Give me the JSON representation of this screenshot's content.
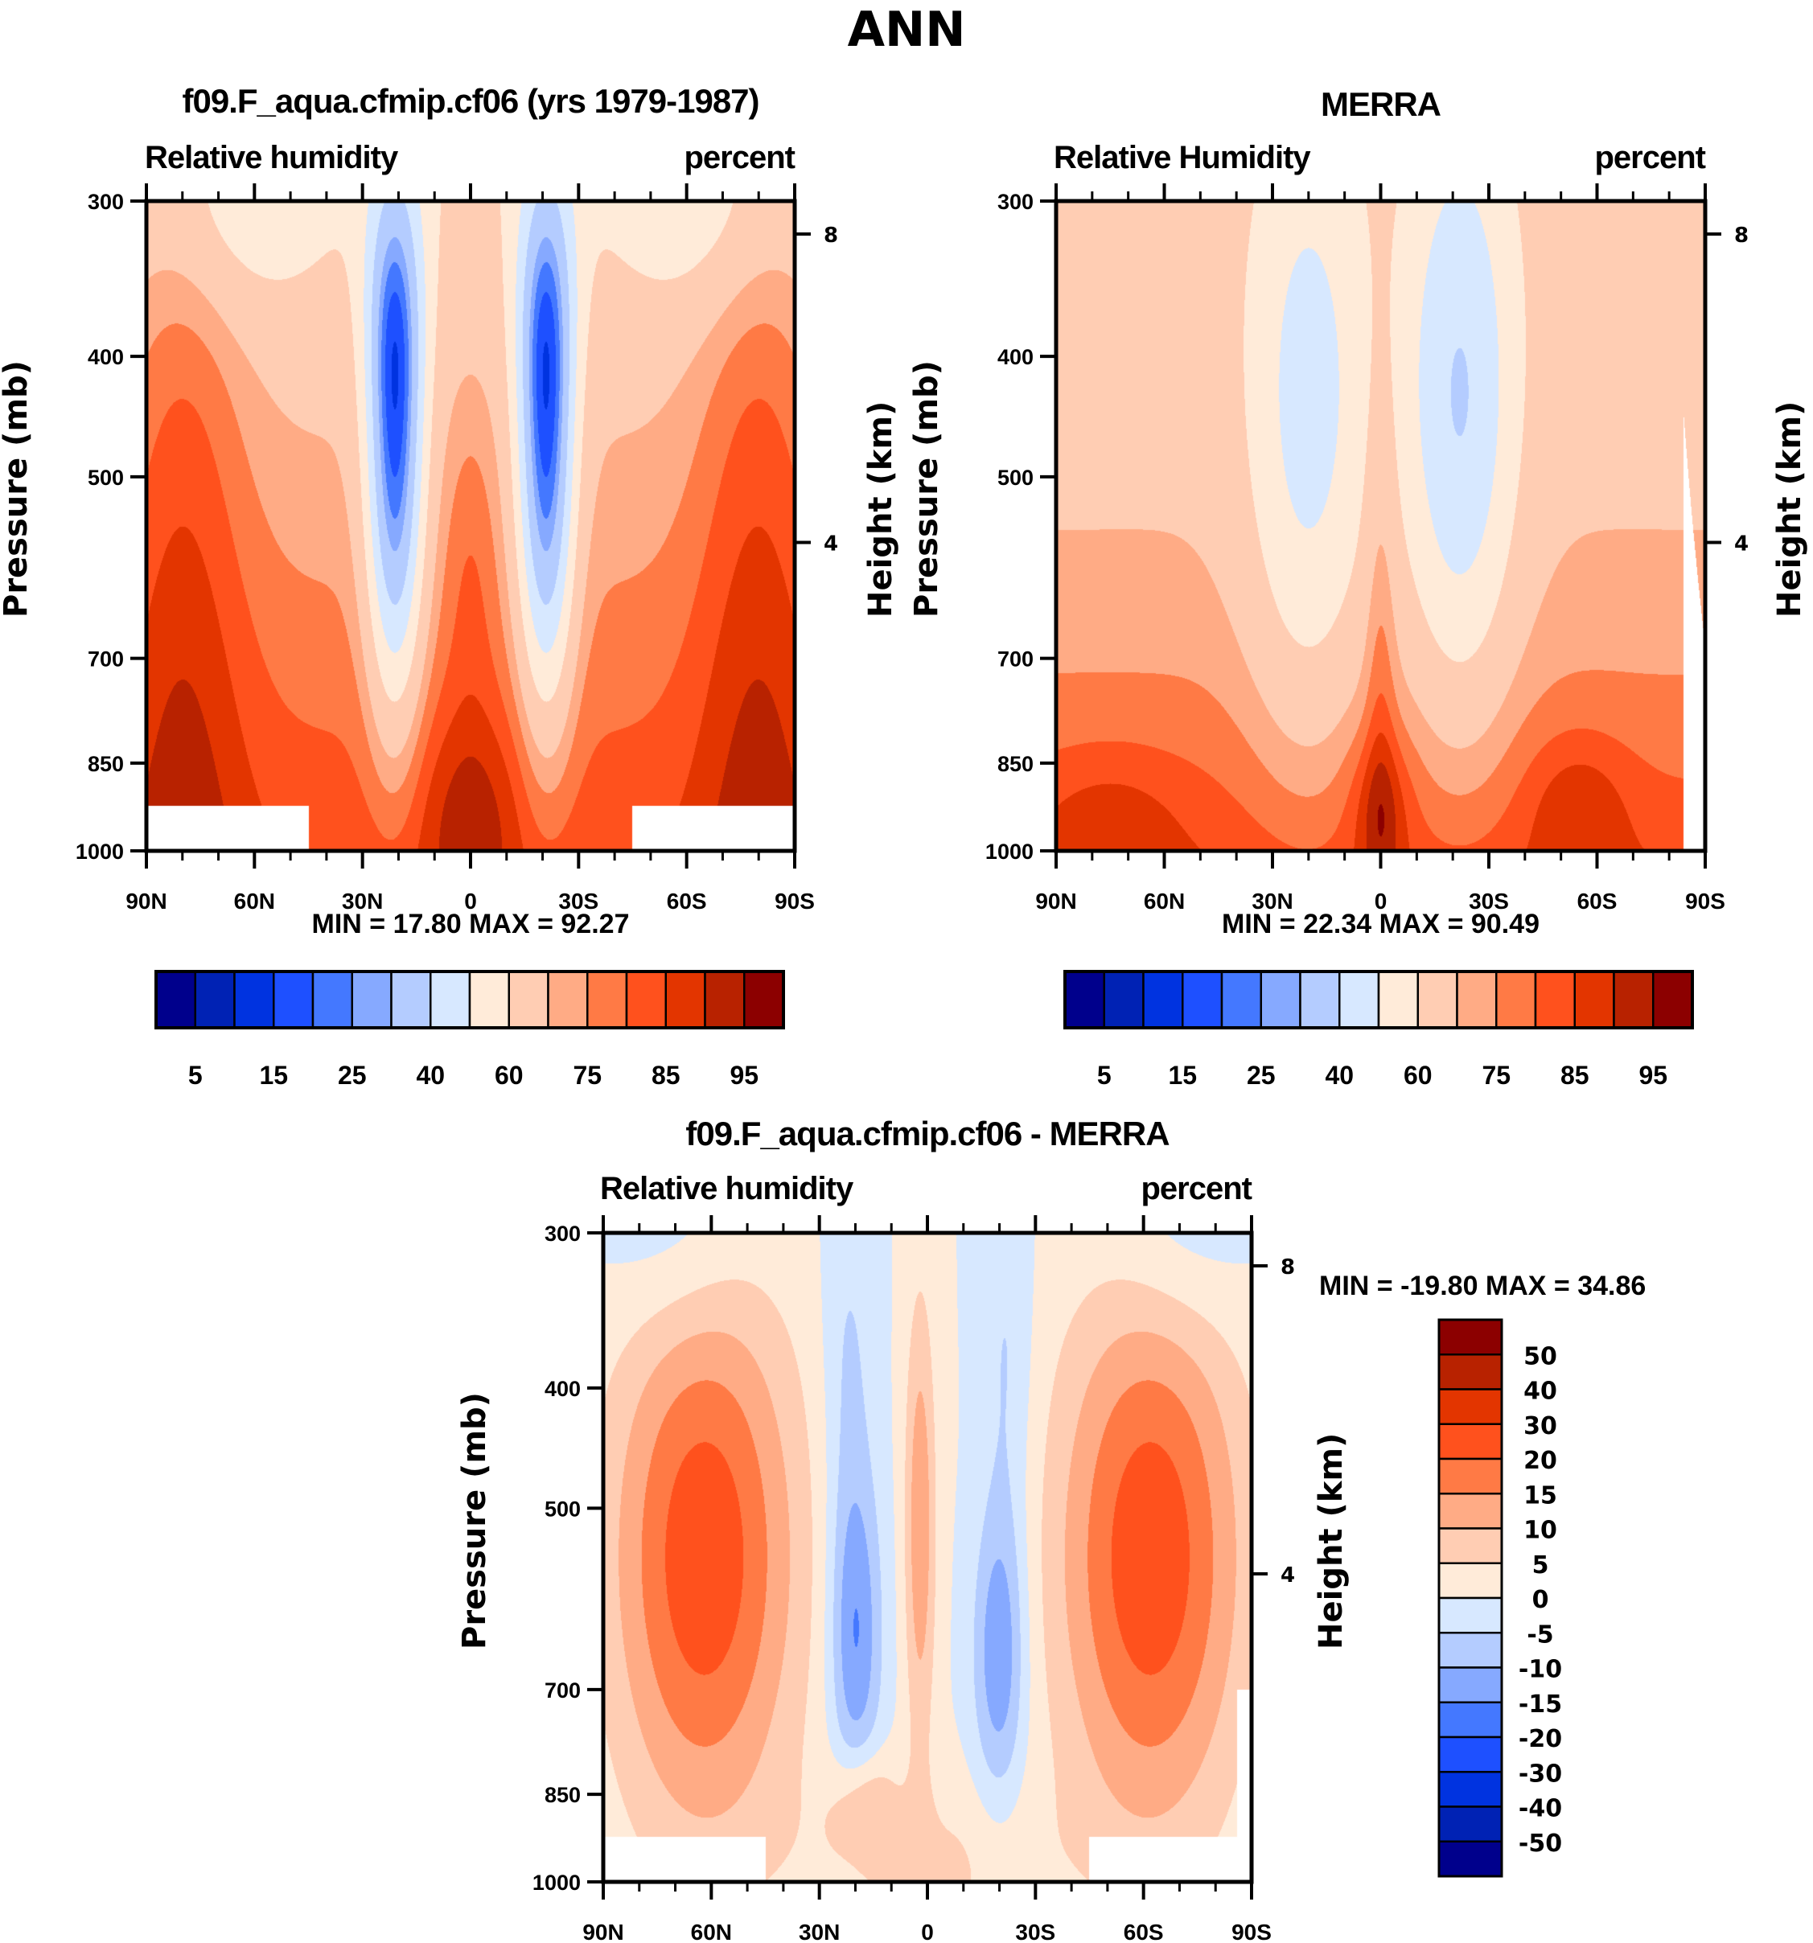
{
  "figure": {
    "title": "ANN"
  },
  "chart_data": [
    {
      "type": "heatmap",
      "subtype": "filled-contour latitude-pressure cross section",
      "title": "f09.F_aqua.cfmip.cf06 (yrs 1979-1987)",
      "left_label": "Relative humidity",
      "right_label": "percent",
      "ylabel": "Pressure (mb)",
      "ylabel_right": "Height (km)",
      "x_ticks": [
        "90N",
        "60N",
        "30N",
        "0",
        "30S",
        "60S",
        "90S"
      ],
      "y_ticks": [
        "300",
        "400",
        "500",
        "700",
        "850",
        "1000"
      ],
      "y_right_ticks": [
        "8",
        "4"
      ],
      "xlim": [
        "90N",
        "90S"
      ],
      "ylim": [
        1000,
        300
      ],
      "min_label": "MIN =  17.80  MAX =  92.27",
      "min": 17.8,
      "max": 92.27,
      "colorbar": {
        "orientation": "horizontal",
        "levels": [
          5,
          10,
          15,
          20,
          25,
          30,
          40,
          50,
          60,
          70,
          75,
          80,
          85,
          90,
          95
        ],
        "labels": [
          "5",
          "15",
          "25",
          "40",
          "60",
          "75",
          "85",
          "95"
        ],
        "colors": [
          "#00008c",
          "#0022b4",
          "#0033e0",
          "#1e50ff",
          "#4478ff",
          "#86a9ff",
          "#b4ccff",
          "#d7e8ff",
          "#ffebd9",
          "#ffcdb3",
          "#ffab85",
          "#ff7a45",
          "#ff511d",
          "#e33500",
          "#b82200",
          "#8c0000"
        ]
      },
      "features": "Two dry (blue, ~20-35%) tongues near 20N and 20S from 300 to 800 mb; moist (80-90%) in boundary layer and mid-latitudes; missing below ~920 mb poleward of 45 degrees"
    },
    {
      "type": "heatmap",
      "subtype": "filled-contour latitude-pressure cross section",
      "title": "MERRA",
      "left_label": "Relative Humidity",
      "right_label": "percent",
      "ylabel": "Pressure (mb)",
      "ylabel_right": "Height (km)",
      "x_ticks": [
        "90N",
        "60N",
        "30N",
        "0",
        "30S",
        "60S",
        "90S"
      ],
      "y_ticks": [
        "300",
        "400",
        "500",
        "700",
        "850",
        "1000"
      ],
      "y_right_ticks": [
        "8",
        "4"
      ],
      "xlim": [
        "90N",
        "90S"
      ],
      "ylim": [
        1000,
        300
      ],
      "min_label": "MIN =  22.34  MAX =  90.49",
      "min": 22.34,
      "max": 90.49,
      "colorbar": {
        "orientation": "horizontal",
        "levels": [
          5,
          10,
          15,
          20,
          25,
          30,
          40,
          50,
          60,
          70,
          75,
          80,
          85,
          90,
          95
        ],
        "labels": [
          "5",
          "15",
          "25",
          "40",
          "60",
          "75",
          "85",
          "95"
        ],
        "colors": [
          "#00008c",
          "#0022b4",
          "#0033e0",
          "#1e50ff",
          "#4478ff",
          "#86a9ff",
          "#b4ccff",
          "#d7e8ff",
          "#ffebd9",
          "#ffcdb3",
          "#ffab85",
          "#ff7a45",
          "#ff511d",
          "#e33500",
          "#b82200",
          "#8c0000"
        ]
      },
      "features": "Broad subtropical dry regions (30-50%) centered near 20N and 25S at 400-500 mb; moist boundary layer (80-90%) below 900 mb"
    },
    {
      "type": "heatmap",
      "subtype": "filled-contour latitude-pressure cross section (difference)",
      "title": "f09.F_aqua.cfmip.cf06 - MERRA",
      "left_label": "Relative humidity",
      "right_label": "percent",
      "ylabel": "Pressure (mb)",
      "ylabel_right": "Height (km)",
      "x_ticks": [
        "90N",
        "60N",
        "30N",
        "0",
        "30S",
        "60S",
        "90S"
      ],
      "y_ticks": [
        "300",
        "400",
        "500",
        "700",
        "850",
        "1000"
      ],
      "y_right_ticks": [
        "8",
        "4"
      ],
      "xlim": [
        "90N",
        "90S"
      ],
      "ylim": [
        1000,
        300
      ],
      "min_label": "MIN = -19.80  MAX =  34.86",
      "min": -19.8,
      "max": 34.86,
      "colorbar": {
        "orientation": "vertical",
        "levels": [
          -50,
          -40,
          -30,
          -20,
          -15,
          -10,
          -5,
          0,
          5,
          10,
          15,
          20,
          30,
          40,
          50
        ],
        "labels": [
          "50",
          "40",
          "30",
          "20",
          "15",
          "10",
          "5",
          "0",
          "-5",
          "-10",
          "-15",
          "-20",
          "-30",
          "-40",
          "-50"
        ],
        "colors": [
          "#00008c",
          "#0022b4",
          "#0033e0",
          "#1e50ff",
          "#4478ff",
          "#86a9ff",
          "#b4ccff",
          "#d7e8ff",
          "#ffebd9",
          "#ffcdb3",
          "#ffab85",
          "#ff7a45",
          "#ff511d",
          "#e33500",
          "#b82200",
          "#8c0000"
        ]
      },
      "features": "Model moister by 20-30% in mid-latitudes 500-850 mb; drier by 15-20% near 20N and 20S around 600-700 mb"
    }
  ]
}
